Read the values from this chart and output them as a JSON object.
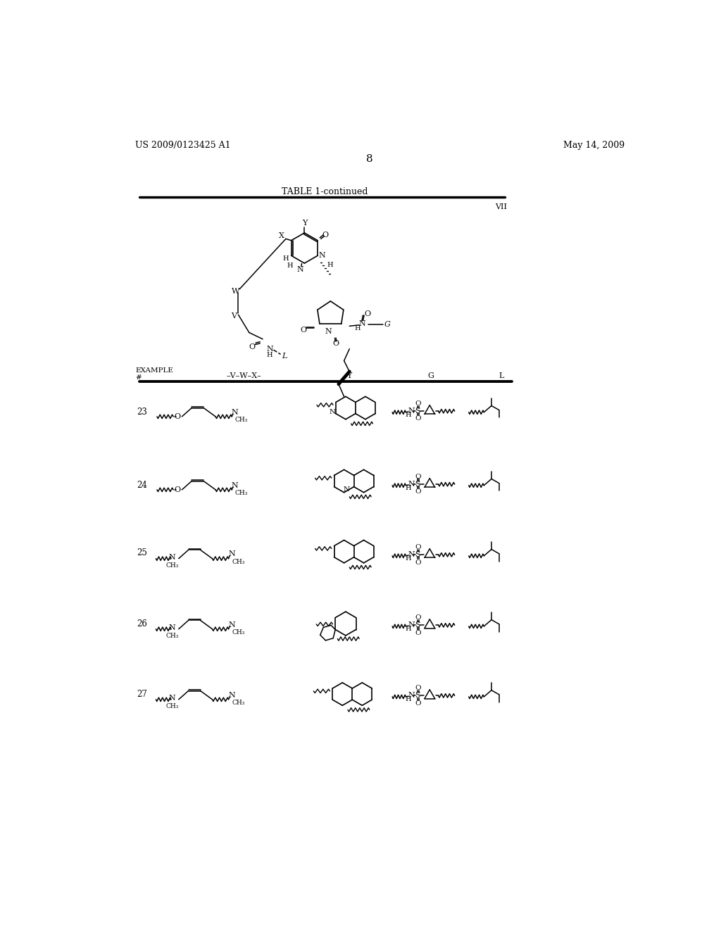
{
  "patent_number": "US 2009/0123425 A1",
  "date": "May 14, 2009",
  "page_number": "8",
  "table_title": "TABLE 1-continued",
  "structure_label": "VII",
  "background_color": "#ffffff"
}
